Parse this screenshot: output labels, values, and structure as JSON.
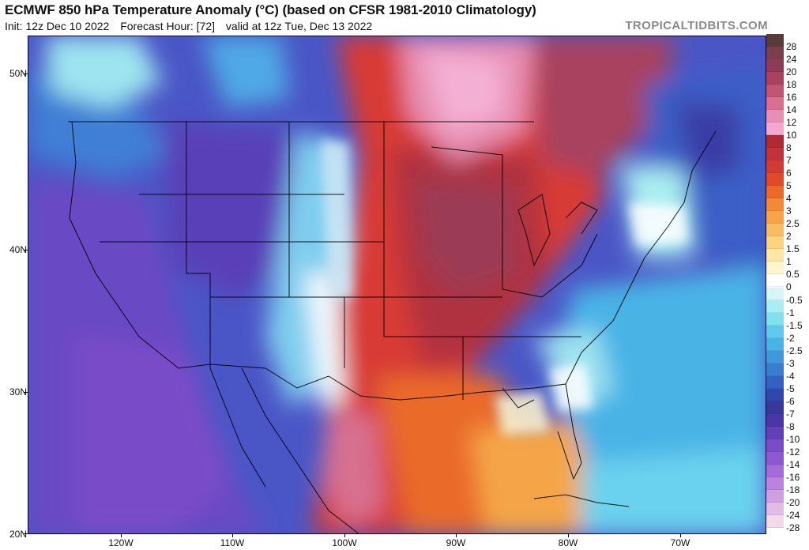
{
  "header": {
    "title": "ECMWF 850 hPa Temperature Anomaly (°C) (based on CFSR 1981-2010 Climatology)",
    "init": "Init: 12z Dec 10 2022",
    "forecast_hour": "Forecast Hour: [72]",
    "valid": "valid at 12z Tue, Dec 13 2022",
    "watermark": "TROPICALTIDBITS.COM"
  },
  "map": {
    "lat_labels": [
      "50N",
      "40N",
      "30N",
      "20N"
    ],
    "lon_labels": [
      "120W",
      "110W",
      "100W",
      "90W",
      "80W",
      "70W"
    ]
  },
  "colorbar": {
    "labels": [
      "28",
      "24",
      "20",
      "18",
      "16",
      "14",
      "12",
      "10",
      "8",
      "7",
      "6",
      "5",
      "4",
      "3",
      "2.5",
      "2",
      "1.5",
      "1",
      "0.5",
      "0",
      "-0.5",
      "-1",
      "-1.5",
      "-2",
      "-2.5",
      "-3",
      "-4",
      "-5",
      "-6",
      "-7",
      "-8",
      "-10",
      "-12",
      "-14",
      "-16",
      "-18",
      "-20",
      "-24",
      "-28"
    ],
    "colors": [
      "#5a3a3a",
      "#7a3f4e",
      "#8f3b57",
      "#a8425f",
      "#c05673",
      "#d86f90",
      "#e88fb3",
      "#f4a8cf",
      "#b02a36",
      "#c0333a",
      "#d23b33",
      "#e04a2a",
      "#ea6a2a",
      "#f08a35",
      "#f5a547",
      "#f8bd60",
      "#fad47f",
      "#fce7a4",
      "#fdf5cf",
      "#ffffff",
      "#d6f6f6",
      "#aaeef2",
      "#7fe0ee",
      "#5fcaec",
      "#4ab3e6",
      "#3f98dc",
      "#3a7dd0",
      "#3661c4",
      "#3247ab",
      "#38389a",
      "#4b36a6",
      "#6140b8",
      "#7a4cc8",
      "#8f58d2",
      "#a66bd8",
      "#bb83dd",
      "#cf9fe2",
      "#e2bce7",
      "#f5d8ea"
    ]
  }
}
